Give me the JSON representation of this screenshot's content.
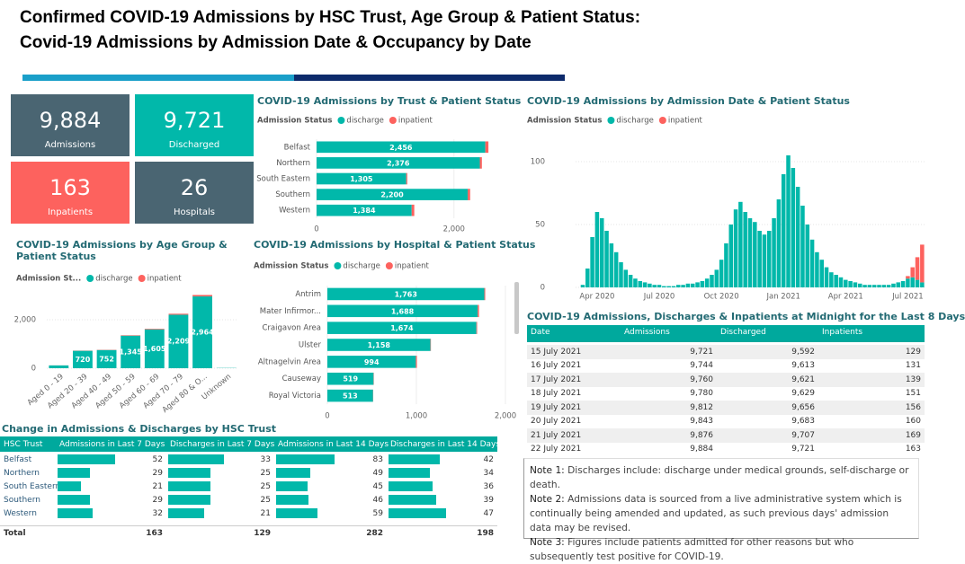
{
  "header": {
    "title_line1": "Confirmed COVID-19 Admissions by HSC Trust, Age Group & Patient Status:",
    "title_line2": "Covid-19 Admissions by Admission Date & Occupancy by Date"
  },
  "kpis": [
    {
      "value": "9,884",
      "label": "Admissions",
      "color": "#4a6572"
    },
    {
      "value": "9,721",
      "label": "Discharged",
      "color": "#01b8aa"
    },
    {
      "value": "163",
      "label": "Inpatients",
      "color": "#fd625e"
    },
    {
      "value": "26",
      "label": "Hospitals",
      "color": "#4a6572"
    }
  ],
  "chart_data": [
    {
      "type": "bar",
      "orientation": "horizontal",
      "stacked": true,
      "title": "COVID-19 Admissions by Trust & Patient Status",
      "legend_title": "Admission Status",
      "categories": [
        "Belfast",
        "Northern",
        "South Eastern",
        "Southern",
        "Western"
      ],
      "series": [
        {
          "name": "discharge",
          "color": "#01b8aa",
          "values": [
            2456,
            2376,
            1305,
            2200,
            1384
          ],
          "value_labels": [
            "2,456",
            "2,376",
            "1,305",
            "2,200",
            "1,384"
          ]
        },
        {
          "name": "inpatient",
          "color": "#fd625e",
          "values": [
            45,
            30,
            15,
            35,
            38
          ]
        }
      ],
      "xlim": [
        0,
        2500
      ],
      "xticks": [
        0,
        {
          "value": 2000,
          "label": "2,000"
        }
      ],
      "grid": true
    },
    {
      "type": "bar",
      "orientation": "vertical",
      "stacked": true,
      "title": "COVID-19 Admissions by Admission Date & Patient Status",
      "legend_title": "Admission Status",
      "categories": [
        null,
        null,
        null,
        null,
        "Apr 2020",
        null,
        null,
        null,
        null,
        null,
        null,
        null,
        null,
        null,
        null,
        null,
        null,
        "Jul 2020",
        null,
        null,
        null,
        null,
        null,
        null,
        null,
        null,
        null,
        null,
        null,
        null,
        "Oct 2020",
        null,
        null,
        null,
        null,
        null,
        null,
        null,
        null,
        null,
        null,
        null,
        null,
        "Jan 2021",
        null,
        null,
        null,
        null,
        null,
        null,
        null,
        null,
        null,
        null,
        null,
        null,
        "Apr 2021",
        null,
        null,
        null,
        null,
        null,
        null,
        null,
        null,
        null,
        null,
        null,
        null,
        "Jul 2021",
        null,
        null,
        null
      ],
      "series": [
        {
          "name": "discharge",
          "color": "#01b8aa",
          "values": [
            0,
            2,
            15,
            40,
            60,
            55,
            45,
            35,
            28,
            20,
            14,
            10,
            7,
            5,
            4,
            3,
            2,
            2,
            1,
            1,
            1,
            2,
            2,
            3,
            3,
            4,
            5,
            7,
            10,
            14,
            22,
            35,
            50,
            62,
            68,
            60,
            55,
            52,
            45,
            42,
            45,
            55,
            70,
            90,
            105,
            95,
            80,
            65,
            50,
            38,
            28,
            22,
            16,
            12,
            10,
            8,
            6,
            5,
            4,
            3,
            2,
            2,
            2,
            2,
            2,
            2,
            3,
            4,
            5,
            7,
            8,
            6,
            4
          ]
        },
        {
          "name": "inpatient",
          "color": "#fd625e",
          "values": [
            0,
            0,
            0,
            0,
            0,
            0,
            0,
            0,
            0,
            0,
            0,
            0,
            0,
            0,
            0,
            0,
            0,
            0,
            0,
            0,
            0,
            0,
            0,
            0,
            0,
            0,
            0,
            0,
            0,
            0,
            0,
            0,
            0,
            0,
            0,
            0,
            0,
            0,
            0,
            0,
            0,
            0,
            0,
            0,
            0,
            0,
            0,
            0,
            0,
            0,
            0,
            0,
            0,
            0,
            0,
            0,
            0,
            0,
            0,
            0,
            0,
            0,
            0,
            0,
            0,
            0,
            0,
            0,
            0,
            2,
            8,
            18,
            30
          ]
        }
      ],
      "ylim": [
        0,
        115
      ],
      "yticks": [
        0,
        50,
        100
      ],
      "grid": true
    },
    {
      "type": "bar",
      "orientation": "vertical",
      "stacked": true,
      "title": "COVID-19 Admissions by Age Group & Patient Status",
      "legend_title": "Admission St...",
      "categories": [
        "Aged 0 - 19",
        "Aged 20 - 39",
        "Aged 40 - 49",
        "Aged 50 - 59",
        "Aged 60 - 69",
        "Aged 70 - 79",
        "Aged 80 & O...",
        "Unknown"
      ],
      "series": [
        {
          "name": "discharge",
          "color": "#01b8aa",
          "values": [
            116,
            720,
            752,
            1345,
            1605,
            2209,
            2964,
            10
          ],
          "value_labels": [
            null,
            "720",
            "752",
            "1,345",
            "1,605",
            "2,209",
            "2,964",
            null
          ]
        },
        {
          "name": "inpatient",
          "color": "#fd625e",
          "values": [
            2,
            8,
            10,
            18,
            25,
            40,
            60,
            0
          ]
        }
      ],
      "ylim": [
        0,
        3300
      ],
      "yticks": [
        0,
        {
          "value": 2000,
          "label": "2,000"
        }
      ],
      "grid": true
    },
    {
      "type": "bar",
      "orientation": "horizontal",
      "stacked": true,
      "title": "COVID-19 Admissions by Hospital & Patient Status",
      "legend_title": "Admission Status",
      "categories": [
        "Antrim",
        "Mater Infirmor...",
        "Craigavon Area",
        "Ulster",
        "Altnagelvin Area",
        "Causeway",
        "Royal Victoria"
      ],
      "series": [
        {
          "name": "discharge",
          "color": "#01b8aa",
          "values": [
            1763,
            1688,
            1674,
            1158,
            994,
            519,
            513
          ],
          "value_labels": [
            "1,763",
            "1,688",
            "1,674",
            "1,158",
            "994",
            "519",
            "513"
          ]
        },
        {
          "name": "inpatient",
          "color": "#fd625e",
          "values": [
            10,
            15,
            8,
            5,
            12,
            3,
            2
          ]
        }
      ],
      "xlim": [
        0,
        2000
      ],
      "xticks": [
        0,
        {
          "value": 1000,
          "label": "1,000"
        },
        {
          "value": 2000,
          "label": "2,000"
        }
      ],
      "grid": true
    }
  ],
  "trust_table": {
    "title": "Change in Admissions & Discharges by HSC Trust",
    "columns": [
      "HSC Trust",
      "Admissions in Last 7 Days",
      "Discharges in Last 7 Days",
      "Admissions in Last 14 Days",
      "Discharges in Last 14 Days"
    ],
    "rows": [
      [
        "Belfast",
        52,
        33,
        83,
        42
      ],
      [
        "Northern",
        29,
        25,
        49,
        34
      ],
      [
        "South Eastern",
        21,
        25,
        45,
        36
      ],
      [
        "Southern",
        29,
        25,
        46,
        39
      ],
      [
        "Western",
        32,
        21,
        59,
        47
      ]
    ],
    "total": [
      "Total",
      163,
      129,
      282,
      198
    ],
    "bar_color": "#01b8aa"
  },
  "occupancy_table": {
    "title": "COVID-19 Admissions, Discharges & Inpatients at Midnight for the Last 8 Days",
    "columns": [
      "Date",
      "Admissions",
      "Discharged",
      "Inpatients"
    ],
    "rows": [
      [
        "15 July 2021",
        "9,721",
        "9,592",
        "129"
      ],
      [
        "16 July 2021",
        "9,744",
        "9,613",
        "131"
      ],
      [
        "17 July 2021",
        "9,760",
        "9,621",
        "139"
      ],
      [
        "18 July 2021",
        "9,780",
        "9,629",
        "151"
      ],
      [
        "19 July 2021",
        "9,812",
        "9,656",
        "156"
      ],
      [
        "20 July 2021",
        "9,843",
        "9,683",
        "160"
      ],
      [
        "21 July 2021",
        "9,876",
        "9,707",
        "169"
      ],
      [
        "22 July 2021",
        "9,884",
        "9,721",
        "163"
      ]
    ]
  },
  "notes": [
    {
      "label": "Note 1:",
      "text": "Discharges include: discharge under medical grounds, self-discharge or death."
    },
    {
      "label": "Note 2:",
      "text": "Admissions data is sourced from a live administrative system which is continually being amended and updated, as such previous days' admission data may be revised."
    },
    {
      "label": "Note 3:",
      "text": "Figures include patients admitted for other reasons but who subsequently test positive for COVID-19."
    }
  ]
}
